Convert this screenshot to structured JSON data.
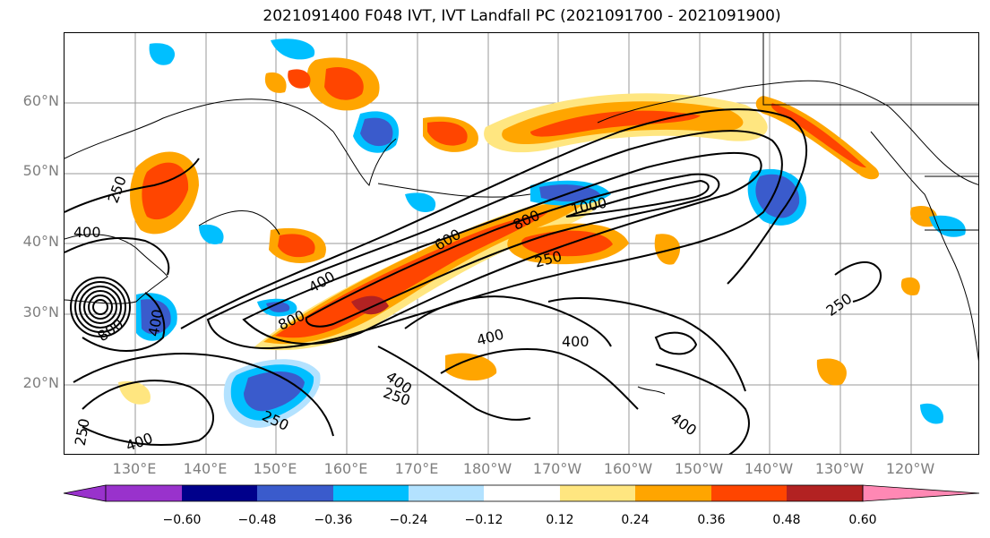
{
  "title": "2021091400 F048 IVT, IVT Landfall PC (2021091700 - 2021091900)",
  "lat_labels": [
    "60°N",
    "50°N",
    "40°N",
    "30°N",
    "20°N"
  ],
  "lon_labels": [
    "130°E",
    "140°E",
    "150°E",
    "160°E",
    "170°E",
    "180°W",
    "170°W",
    "160°W",
    "150°W",
    "140°W",
    "130°W",
    "120°W"
  ],
  "contour_labels": [
    "250",
    "400",
    "250",
    "400",
    "600",
    "800",
    "1000",
    "800",
    "400",
    "250",
    "400",
    "400",
    "250",
    "400",
    "400",
    "250",
    "400",
    "250",
    "800"
  ],
  "colorbar": {
    "ticks": [
      "−0.60",
      "−0.48",
      "−0.36",
      "−0.24",
      "−0.12",
      "0.12",
      "0.24",
      "0.36",
      "0.48",
      "0.60"
    ],
    "colors": [
      "#9932cc",
      "#00008b",
      "#3a5bcc",
      "#00bfff",
      "#b3e2ff",
      "#ffffff",
      "#ffe680",
      "#ffa500",
      "#ff4500",
      "#b22222",
      "#ff88b4",
      "#ff88b4"
    ],
    "extend": "both"
  },
  "field_colors": {
    "neg_strong": "#3a5bcc",
    "neg_mid": "#00bfff",
    "neg_weak": "#b3e2ff",
    "pos_weak": "#ffe680",
    "pos_mid": "#ffa500",
    "pos_strong": "#ff4500",
    "pos_max": "#b22222"
  }
}
